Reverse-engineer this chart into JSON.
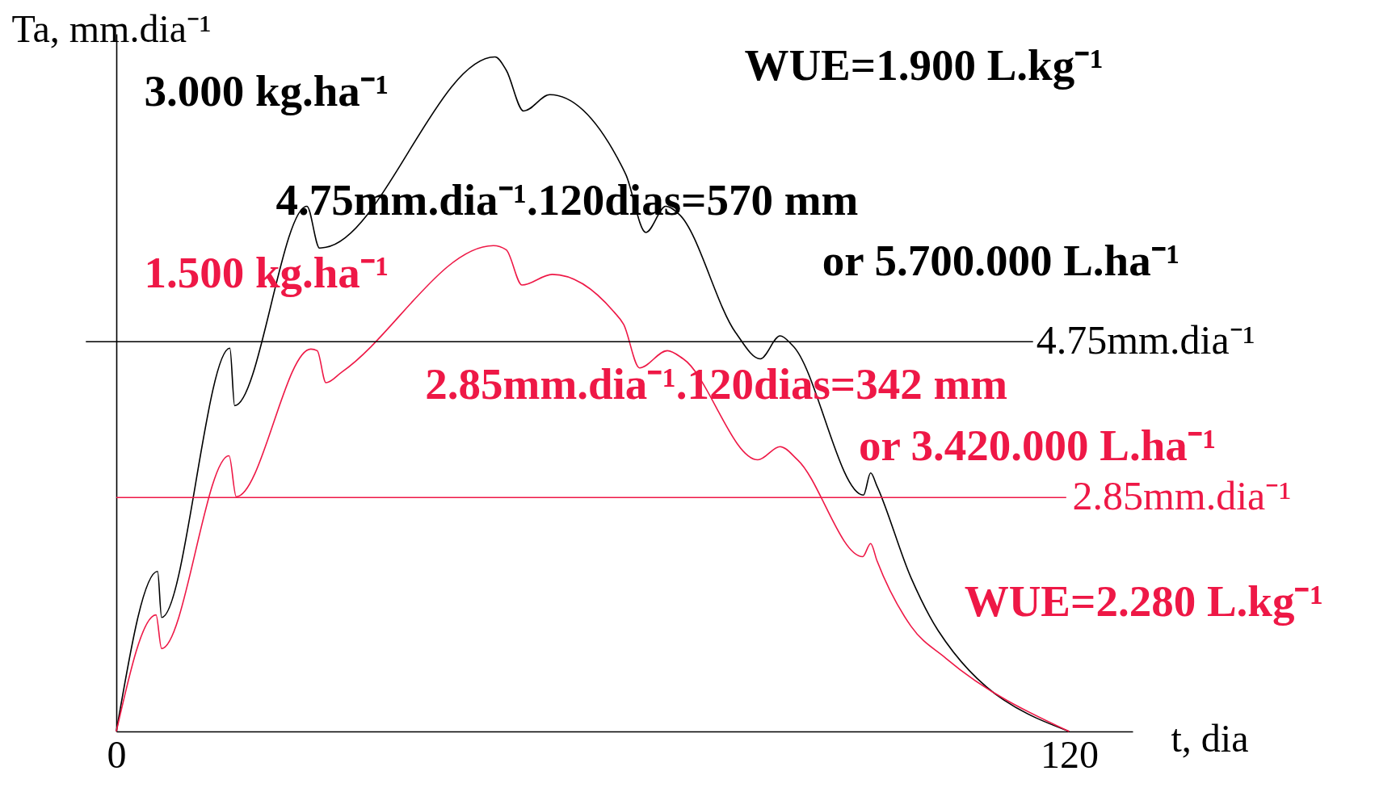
{
  "chart_data": {
    "type": "line",
    "xlabel": "t, dia",
    "ylabel": "Ta, mm.dia⁻¹",
    "xlim": [
      0,
      128
    ],
    "xticks": [
      0,
      120
    ],
    "ylim": [
      0,
      8.5
    ],
    "tick_labels": "x",
    "grid": false,
    "marker": "none",
    "line_style": "solid",
    "series": [
      {
        "color": "#000000",
        "x": [
          0,
          5.2,
          5.7,
          14.3,
          14.9,
          24.0,
          25.6,
          26.4,
          47.7,
          49.1,
          51.3,
          54.6,
          63.1,
          64.2,
          66.7,
          69.2,
          70.9,
          78.0,
          81.1,
          83.6,
          85.2,
          94.1,
          95.0,
          95.8,
          100.1,
          103.5,
          120
        ],
        "values": [
          0,
          1.95,
          1.39,
          4.67,
          3.97,
          6.4,
          5.89,
          5.9,
          8.22,
          8.06,
          7.56,
          7.76,
          6.99,
          6.78,
          6.08,
          6.4,
          6.3,
          4.86,
          4.54,
          4.82,
          4.7,
          2.88,
          3.15,
          2.99,
          1.87,
          1.23,
          0
        ]
      },
      {
        "color": "#ee1846",
        "x": [
          0,
          5.0,
          5.7,
          14.2,
          15.1,
          24.5,
          25.3,
          26.4,
          28.4,
          47.5,
          49.1,
          51.1,
          54.9,
          62.6,
          63.9,
          65.9,
          69.4,
          71.4,
          80.8,
          83.6,
          85.8,
          94.0,
          95.0,
          95.8,
          100.1,
          104.5,
          120
        ],
        "values": [
          0,
          1.42,
          1.01,
          3.36,
          2.86,
          4.66,
          4.64,
          4.25,
          4.38,
          5.92,
          5.87,
          5.44,
          5.57,
          5.12,
          4.96,
          4.43,
          4.64,
          4.54,
          3.31,
          3.47,
          3.31,
          2.13,
          2.29,
          2.08,
          1.28,
          0.89,
          0
        ]
      }
    ],
    "ref_lines": [
      {
        "axis": "y",
        "value": 4.75,
        "label": "4.75mm.dia⁻¹",
        "color": "#000000"
      },
      {
        "axis": "y",
        "value": 2.85,
        "label": "2.85mm.dia⁻¹",
        "color": "#ee1846"
      }
    ],
    "annotations": [
      "3.000 kg.ha⁻¹",
      "WUE=1.900 L.kg⁻¹",
      "4.75mm.dia⁻¹.120dias=570 mm",
      "or 5.700.000 L.ha⁻¹",
      "1.500 kg.ha⁻¹",
      "2.85mm.dia⁻¹.120dias=342 mm",
      "or 3.420.000 L.ha⁻¹",
      "WUE=2.280 L.kg⁻¹"
    ]
  }
}
